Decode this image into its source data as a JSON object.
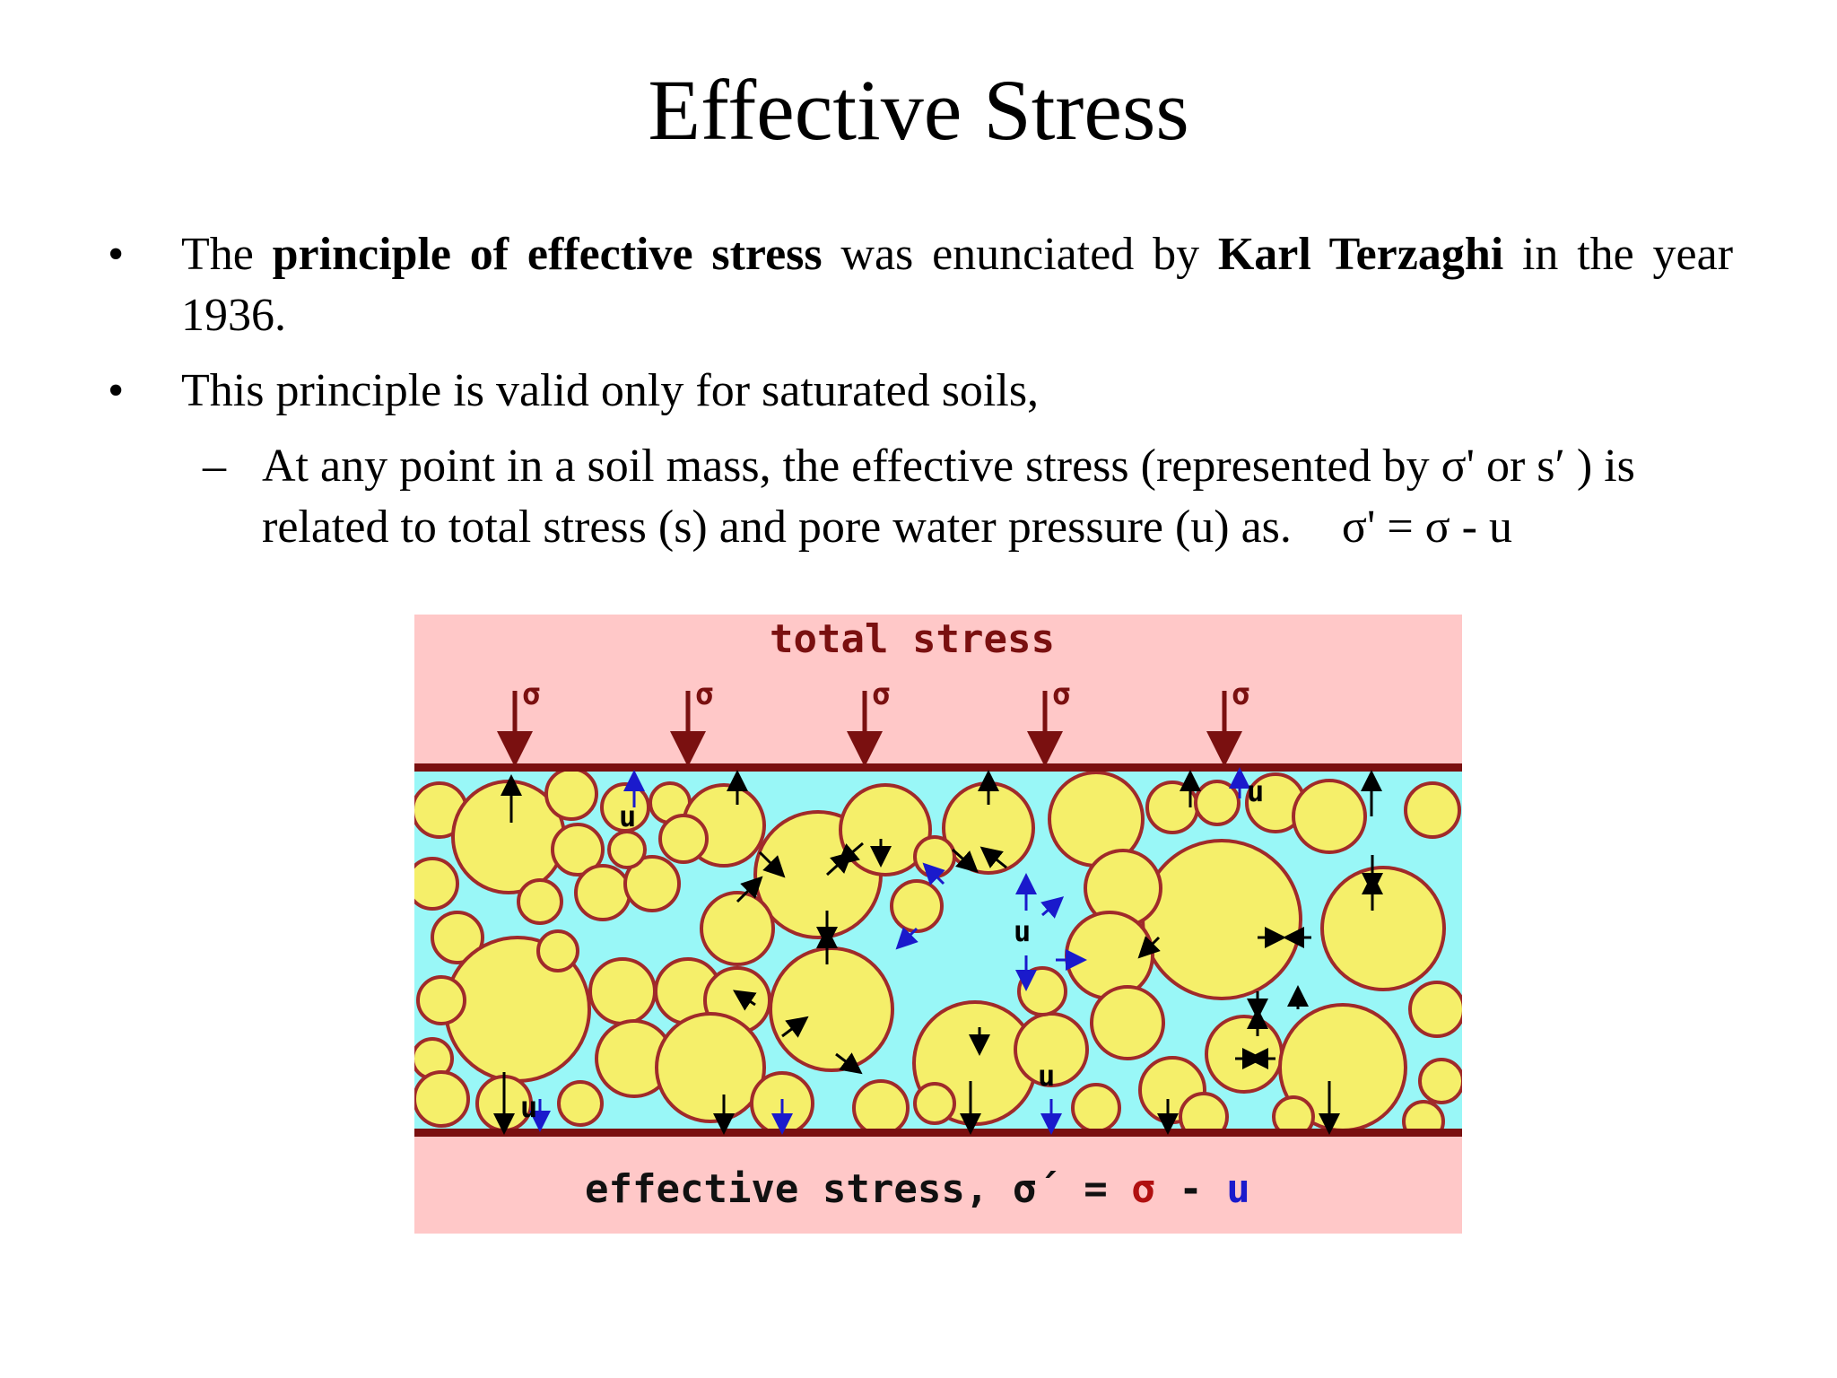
{
  "slide": {
    "title": "Effective Stress",
    "bullet1": {
      "t1": "The ",
      "b1": "principle of effective stress",
      "t2": " was enunciated by ",
      "b2": "Karl Terzaghi",
      "t3": " in the year 1936."
    },
    "bullet2": "This principle is valid only for saturated soils,",
    "sub1": {
      "text": "At any point in a soil mass, the effective stress (represented by σ'  or s′ ) is related to total stress (s) and pore water pressure (u) as.",
      "equation": "σ' = σ - u"
    }
  },
  "figure": {
    "top_label": "total stress",
    "sigma": "σ",
    "u": "u",
    "bottom_label": "effective stress, σ´ = ",
    "bottom_sigma": "σ",
    "bottom_minus": " - ",
    "bottom_u": "u",
    "colors": {
      "band": "#ffc8c8",
      "water": "#99f7f7",
      "grain": "#f5ef6a",
      "grain_edge": "#a02a2a",
      "plate": "#7a1010",
      "u_arrow": "#1a1acc"
    }
  },
  "bullet_glyphs": {
    "dot": "•",
    "dash": "–"
  }
}
